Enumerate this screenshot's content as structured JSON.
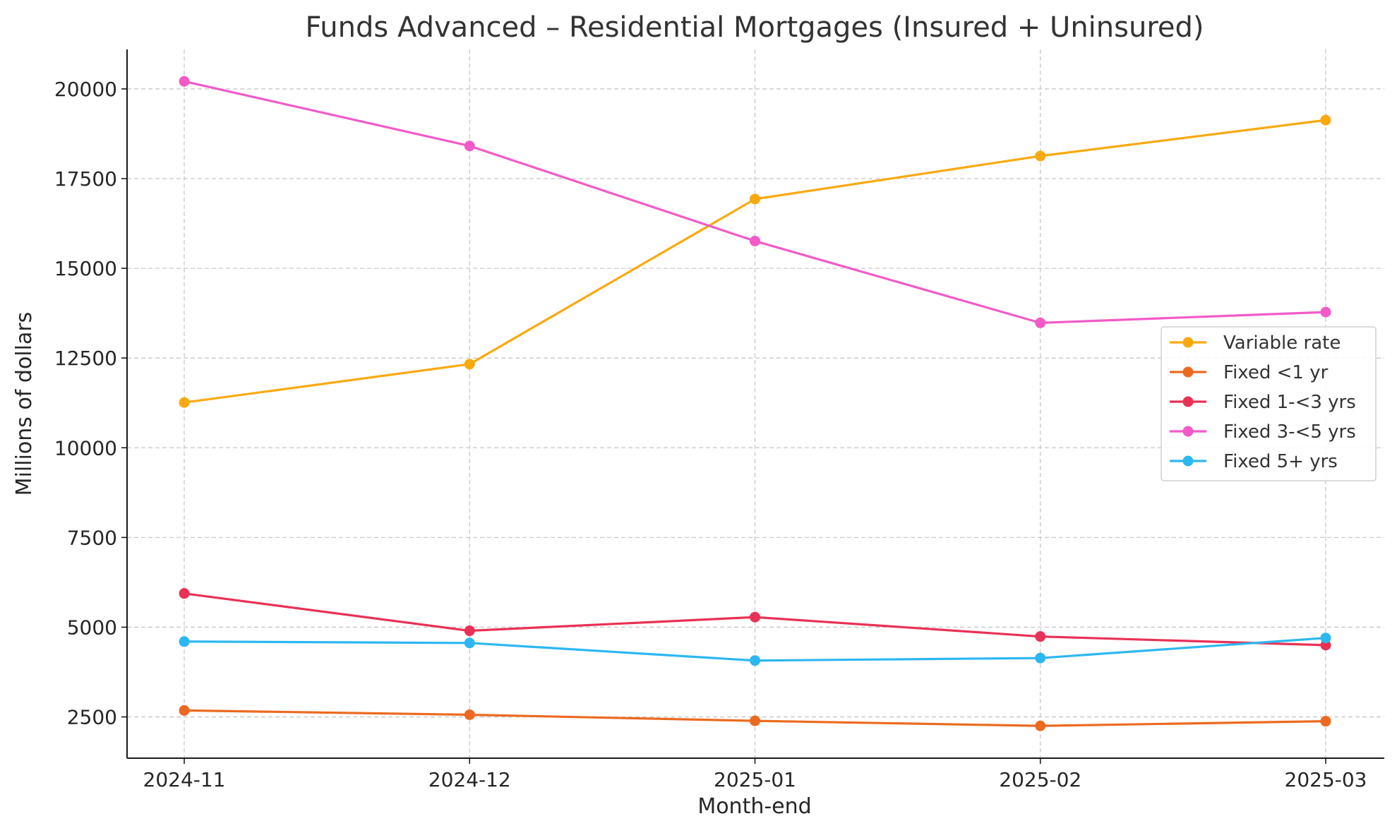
{
  "chart_data": {
    "type": "line",
    "title": "Funds Advanced – Residential Mortgages (Insured + Uninsured)",
    "xlabel": "Month-end",
    "ylabel": "Millions of dollars",
    "categories": [
      "2024-11",
      "2024-12",
      "2025-01",
      "2025-02",
      "2025-03"
    ],
    "y_ticks": [
      2500,
      5000,
      7500,
      10000,
      12500,
      15000,
      17500,
      20000
    ],
    "ylim": [
      1350,
      21100
    ],
    "grid": true,
    "legend_position": "center-right",
    "series": [
      {
        "name": "Variable rate",
        "color": "#f9a90f",
        "values": [
          11260,
          12330,
          16930,
          18130,
          19130
        ]
      },
      {
        "name": "Fixed <1 yr",
        "color": "#ec6a20",
        "values": [
          2680,
          2560,
          2390,
          2250,
          2380
        ]
      },
      {
        "name": "Fixed 1-<3 yrs",
        "color": "#e93155",
        "values": [
          5940,
          4900,
          5280,
          4740,
          4500
        ]
      },
      {
        "name": "Fixed 3-<5 yrs",
        "color": "#f25ac8",
        "values": [
          20210,
          18410,
          15760,
          13480,
          13780
        ]
      },
      {
        "name": "Fixed 5+ yrs",
        "color": "#2db7f1",
        "values": [
          4600,
          4560,
          4070,
          4140,
          4700
        ]
      }
    ]
  }
}
